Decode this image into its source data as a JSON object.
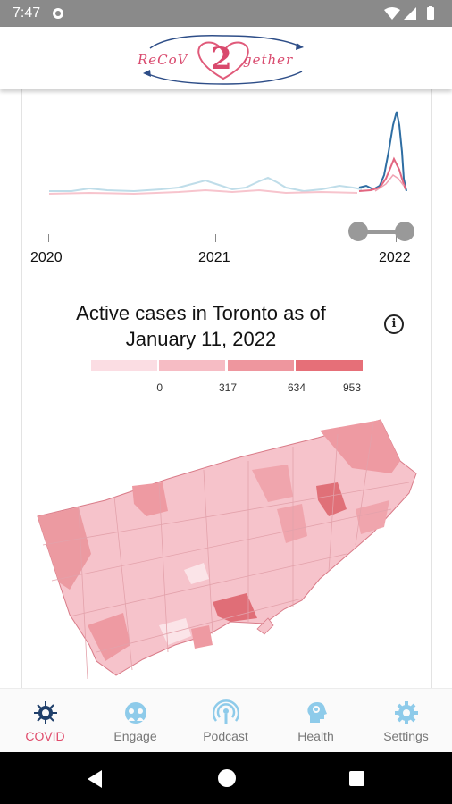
{
  "status_bar": {
    "time": "7:47"
  },
  "header": {
    "logo_left": "ReCoV",
    "logo_num": "2",
    "logo_right": "gether"
  },
  "timeline": {
    "years": [
      "2020",
      "2021",
      "2022"
    ]
  },
  "map": {
    "title_line1": "Active cases in Toronto as of",
    "title_line2": "January 11, 2022",
    "info_label": "i",
    "legend": [
      "0",
      "317",
      "634",
      "953"
    ],
    "legend_colors": [
      "#fbdde3",
      "#f6bcc4",
      "#ee969e",
      "#e66f78"
    ]
  },
  "bottom_nav": {
    "items": [
      {
        "label": "COVID",
        "icon": "virus-icon",
        "active": true
      },
      {
        "label": "Engage",
        "icon": "engage-icon",
        "active": false
      },
      {
        "label": "Podcast",
        "icon": "podcast-icon",
        "active": false
      },
      {
        "label": "Health",
        "icon": "health-icon",
        "active": false
      },
      {
        "label": "Settings",
        "icon": "gear-icon",
        "active": false
      }
    ]
  },
  "colors": {
    "accent": "#e04b6b",
    "nav_icon": "#8ecbea",
    "active_icon": "#1f3f6a"
  }
}
